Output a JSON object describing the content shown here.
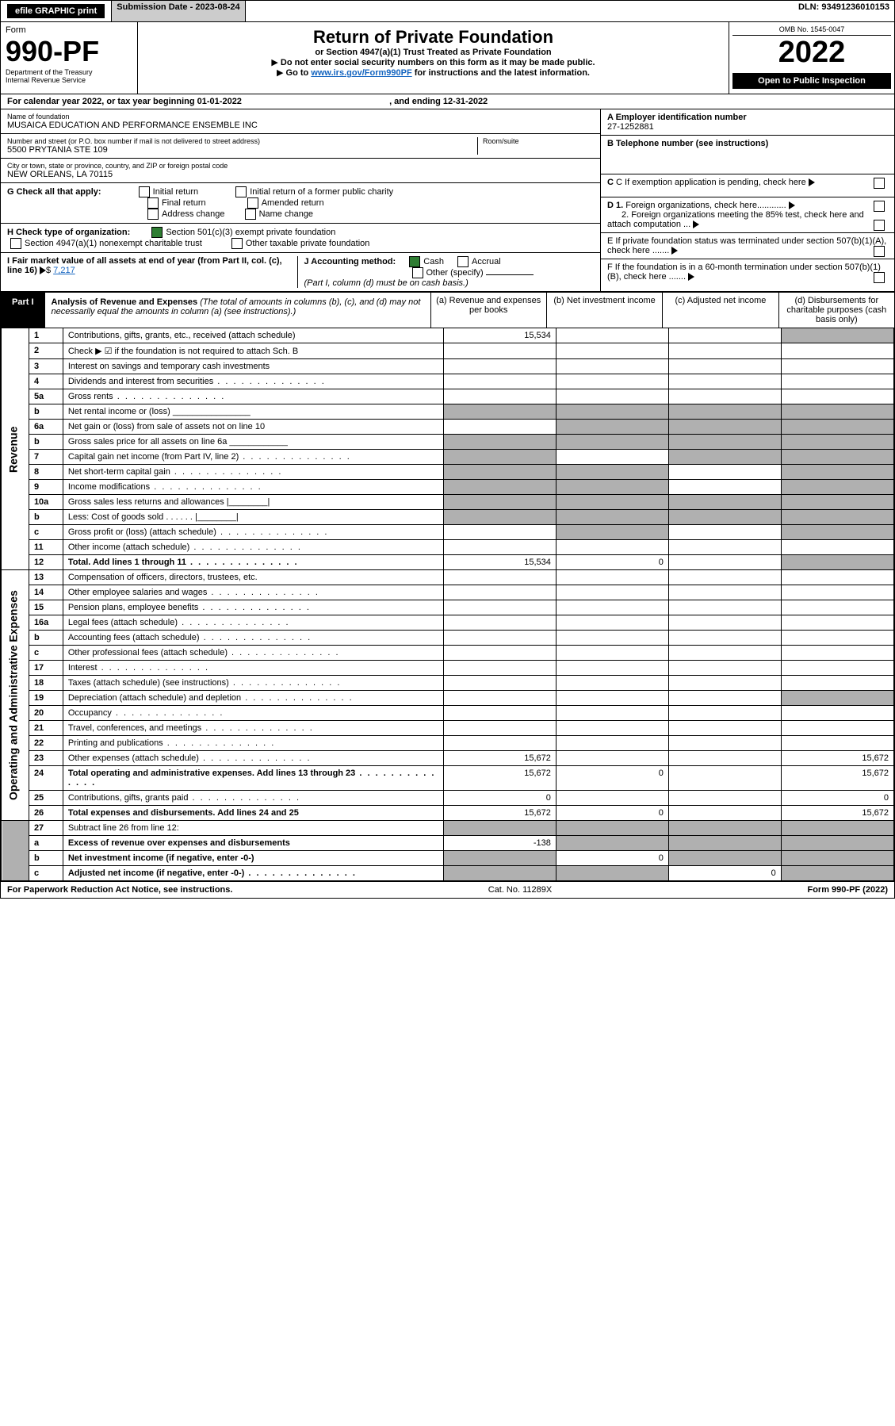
{
  "top": {
    "efile": "efile GRAPHIC print",
    "subdate_lbl": "Submission Date - ",
    "subdate": "2023-08-24",
    "dln_lbl": "DLN: ",
    "dln": "93491236010153"
  },
  "header": {
    "form_word": "Form",
    "form_num": "990-PF",
    "dept1": "Department of the Treasury",
    "dept2": "Internal Revenue Service",
    "title": "Return of Private Foundation",
    "subtitle": "or Section 4947(a)(1) Trust Treated as Private Foundation",
    "note1": "Do not enter social security numbers on this form as it may be made public.",
    "note2_pre": "Go to ",
    "note2_link": "www.irs.gov/Form990PF",
    "note2_post": " for instructions and the latest information.",
    "omb": "OMB No. 1545-0047",
    "year": "2022",
    "open": "Open to Public Inspection"
  },
  "cal": {
    "pre": "For calendar year 2022, or tax year beginning ",
    "begin": "01-01-2022",
    "mid": ", and ending ",
    "end": "12-31-2022"
  },
  "id": {
    "name_lbl": "Name of foundation",
    "name": "MUSAICA EDUCATION AND PERFORMANCE ENSEMBLE INC",
    "addr_lbl": "Number and street (or P.O. box number if mail is not delivered to street address)",
    "addr": "5500 PRYTANIA STE 109",
    "room_lbl": "Room/suite",
    "city_lbl": "City or town, state or province, country, and ZIP or foreign postal code",
    "city": "NEW ORLEANS, LA  70115",
    "A_lbl": "A Employer identification number",
    "A": "27-1252881",
    "B_lbl": "B Telephone number (see instructions)",
    "C": "C If exemption application is pending, check here",
    "D1": "D 1. Foreign organizations, check here............",
    "D2": "2. Foreign organizations meeting the 85% test, check here and attach computation ...",
    "E": "E  If private foundation status was terminated under section 507(b)(1)(A), check here .......",
    "F": "F  If the foundation is in a 60-month termination under section 507(b)(1)(B), check here .......",
    "G_lbl": "G Check all that apply:",
    "G_opts": [
      "Initial return",
      "Final return",
      "Address change",
      "Initial return of a former public charity",
      "Amended return",
      "Name change"
    ],
    "H_lbl": "H Check type of organization:",
    "H1": "Section 501(c)(3) exempt private foundation",
    "H2": "Section 4947(a)(1) nonexempt charitable trust",
    "H3": "Other taxable private foundation",
    "I_lbl": "I Fair market value of all assets at end of year (from Part II, col. (c), line 16)",
    "I_val": "7,217",
    "J_lbl": "J Accounting method:",
    "J_cash": "Cash",
    "J_accr": "Accrual",
    "J_other": "Other (specify)",
    "J_note": "(Part I, column (d) must be on cash basis.)"
  },
  "part1": {
    "tag": "Part I",
    "title": "Analysis of Revenue and Expenses",
    "note": " (The total of amounts in columns (b), (c), and (d) may not necessarily equal the amounts in column (a) (see instructions).)",
    "cols": {
      "a": "(a)   Revenue and expenses per books",
      "b": "(b)   Net investment income",
      "c": "(c)   Adjusted net income",
      "d": "(d)   Disbursements for charitable purposes (cash basis only)"
    }
  },
  "sections": {
    "rev": "Revenue",
    "oae": "Operating and Administrative Expenses"
  },
  "rows": [
    {
      "n": "1",
      "d": "Contributions, gifts, grants, etc., received (attach schedule)",
      "a": "15,534",
      "shade": [
        "d"
      ]
    },
    {
      "n": "2",
      "d": "Check ▶ ☑ if the foundation is not required to attach Sch. B",
      "span": true
    },
    {
      "n": "3",
      "d": "Interest on savings and temporary cash investments"
    },
    {
      "n": "4",
      "d": "Dividends and interest from securities",
      "dots": true
    },
    {
      "n": "5a",
      "d": "Gross rents",
      "dots": true
    },
    {
      "n": "b",
      "d": "Net rental income or (loss)   ________________",
      "shade": [
        "a",
        "b",
        "c",
        "d"
      ]
    },
    {
      "n": "6a",
      "d": "Net gain or (loss) from sale of assets not on line 10",
      "shade": [
        "b",
        "c",
        "d"
      ]
    },
    {
      "n": "b",
      "d": "Gross sales price for all assets on line 6a ____________",
      "shade": [
        "a",
        "b",
        "c",
        "d"
      ]
    },
    {
      "n": "7",
      "d": "Capital gain net income (from Part IV, line 2)",
      "dots": true,
      "shade": [
        "a",
        "c",
        "d"
      ]
    },
    {
      "n": "8",
      "d": "Net short-term capital gain",
      "dots": true,
      "shade": [
        "a",
        "b",
        "d"
      ]
    },
    {
      "n": "9",
      "d": "Income modifications",
      "dots": true,
      "shade": [
        "a",
        "b",
        "d"
      ]
    },
    {
      "n": "10a",
      "d": "Gross sales less returns and allowances   |________|",
      "shade": [
        "a",
        "b",
        "c",
        "d"
      ]
    },
    {
      "n": "b",
      "d": "Less: Cost of goods sold   .  .  .  .  .  .   |________|",
      "shade": [
        "a",
        "b",
        "c",
        "d"
      ]
    },
    {
      "n": "c",
      "d": "Gross profit or (loss) (attach schedule)",
      "dots": true,
      "shade": [
        "b",
        "d"
      ]
    },
    {
      "n": "11",
      "d": "Other income (attach schedule)",
      "dots": true
    },
    {
      "n": "12",
      "d": "Total. Add lines 1 through 11",
      "dots": true,
      "bold": true,
      "a": "15,534",
      "b": "0",
      "shade": [
        "d"
      ]
    }
  ],
  "rows2": [
    {
      "n": "13",
      "d": "Compensation of officers, directors, trustees, etc."
    },
    {
      "n": "14",
      "d": "Other employee salaries and wages",
      "dots": true
    },
    {
      "n": "15",
      "d": "Pension plans, employee benefits",
      "dots": true
    },
    {
      "n": "16a",
      "d": "Legal fees (attach schedule)",
      "dots": true
    },
    {
      "n": "b",
      "d": "Accounting fees (attach schedule)",
      "dots": true
    },
    {
      "n": "c",
      "d": "Other professional fees (attach schedule)",
      "dots": true
    },
    {
      "n": "17",
      "d": "Interest",
      "dots": true
    },
    {
      "n": "18",
      "d": "Taxes (attach schedule) (see instructions)",
      "dots": true
    },
    {
      "n": "19",
      "d": "Depreciation (attach schedule) and depletion",
      "dots": true,
      "shade": [
        "d"
      ]
    },
    {
      "n": "20",
      "d": "Occupancy",
      "dots": true
    },
    {
      "n": "21",
      "d": "Travel, conferences, and meetings",
      "dots": true
    },
    {
      "n": "22",
      "d": "Printing and publications",
      "dots": true
    },
    {
      "n": "23",
      "d": "Other expenses (attach schedule)",
      "dots": true,
      "a": "15,672",
      "d_": "15,672"
    },
    {
      "n": "24",
      "d": "Total operating and administrative expenses. Add lines 13 through 23",
      "dots": true,
      "bold": true,
      "a": "15,672",
      "b": "0",
      "d_": "15,672"
    },
    {
      "n": "25",
      "d": "Contributions, gifts, grants paid",
      "dots": true,
      "a": "0",
      "d_": "0"
    },
    {
      "n": "26",
      "d": "Total expenses and disbursements. Add lines 24 and 25",
      "bold": true,
      "a": "15,672",
      "b": "0",
      "d_": "15,672"
    }
  ],
  "rows3": [
    {
      "n": "27",
      "d": "Subtract line 26 from line 12:",
      "shade": [
        "a",
        "b",
        "c",
        "d"
      ]
    },
    {
      "n": "a",
      "d": "Excess of revenue over expenses and disbursements",
      "bold": true,
      "a": "-138",
      "shade": [
        "b",
        "c",
        "d"
      ]
    },
    {
      "n": "b",
      "d": "Net investment income (if negative, enter -0-)",
      "bold": true,
      "b": "0",
      "shade": [
        "a",
        "c",
        "d"
      ]
    },
    {
      "n": "c",
      "d": "Adjusted net income (if negative, enter -0-)",
      "bold": true,
      "dots": true,
      "c": "0",
      "shade": [
        "a",
        "b",
        "d"
      ]
    }
  ],
  "footer": {
    "left": "For Paperwork Reduction Act Notice, see instructions.",
    "mid": "Cat. No. 11289X",
    "right": "Form 990-PF (2022)"
  }
}
